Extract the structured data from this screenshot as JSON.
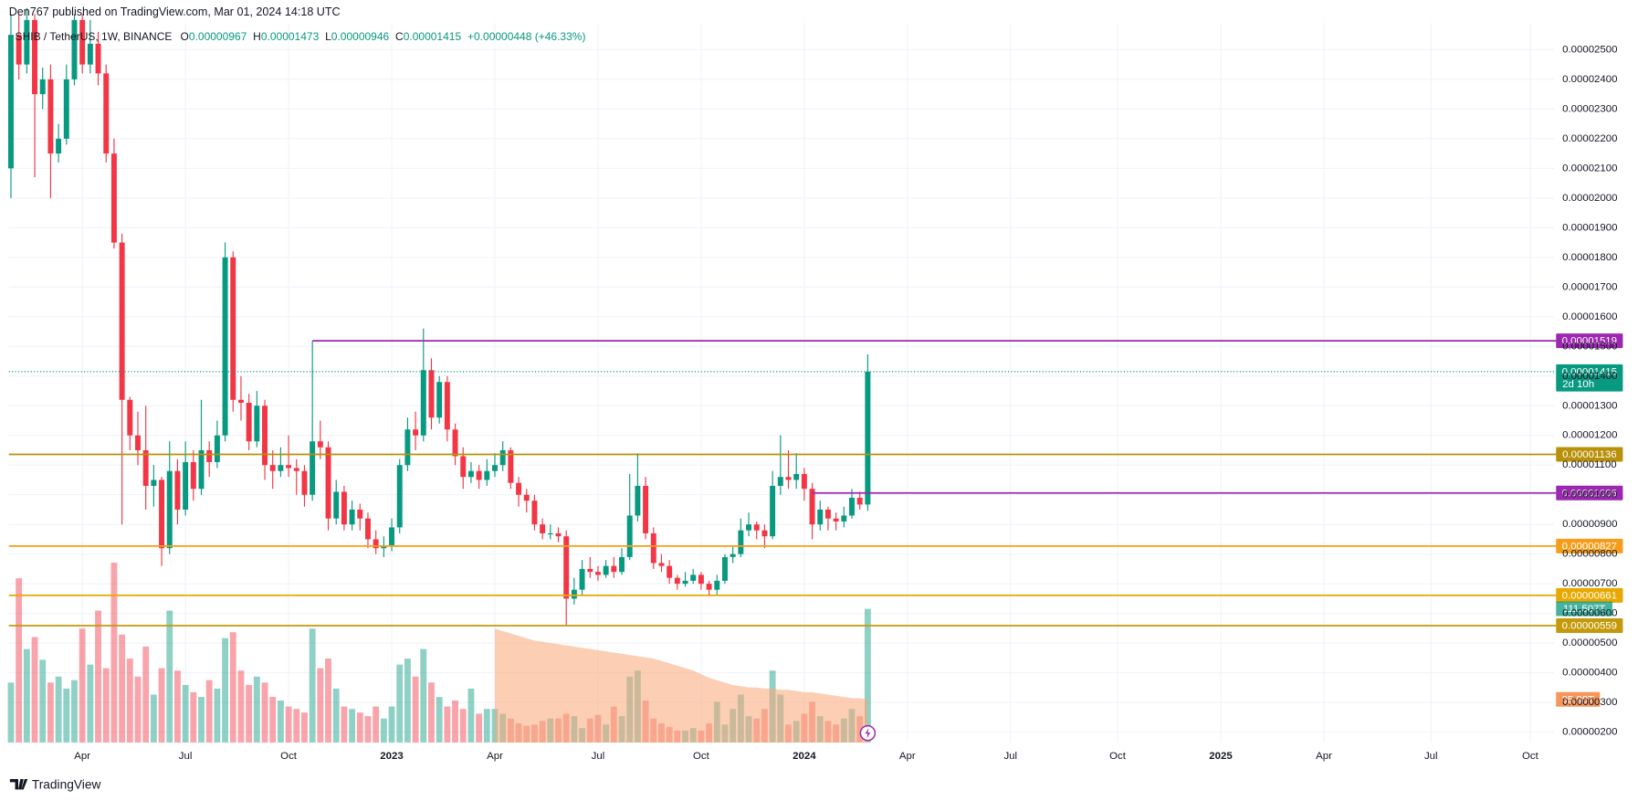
{
  "chart_data": {
    "type": "candlestick",
    "publisher": "Den767 published on TradingView.com, Mar 01, 2024 14:18 UTC",
    "symbol": "SHIB / TetherUS, 1W, BINANCE",
    "ohlc_letters": [
      "O",
      "H",
      "L",
      "C"
    ],
    "change": "+0.00000448 (+46.33%)",
    "brand": "TradingView",
    "up_color": "#089981",
    "down_color": "#f23645",
    "xlim": [
      -0.26,
      194.5
    ],
    "ylim": [
      1.65e-06,
      2.59e-05
    ],
    "volume_ylim": [
      0,
      600
    ],
    "grid": true,
    "xticks": [
      {
        "value": 9,
        "label": "Apr"
      },
      {
        "value": 22,
        "label": "Jul"
      },
      {
        "value": 35,
        "label": "Oct"
      },
      {
        "value": 48,
        "label": "2023"
      },
      {
        "value": 61,
        "label": "Apr"
      },
      {
        "value": 74,
        "label": "Jul"
      },
      {
        "value": 87,
        "label": "Oct"
      },
      {
        "value": 100,
        "label": "2024"
      },
      {
        "value": 113,
        "label": "Apr"
      },
      {
        "value": 126,
        "label": "Jul"
      },
      {
        "value": 139.5,
        "label": "Oct"
      },
      {
        "value": 152.5,
        "label": "2025"
      },
      {
        "value": 165.5,
        "label": "Apr"
      },
      {
        "value": 179,
        "label": "Jul"
      },
      {
        "value": 191.5,
        "label": "Oct"
      }
    ],
    "yticks": [
      {
        "value": 2e-06,
        "label": "0.00000200"
      },
      {
        "value": 3e-06,
        "label": "0.00000300"
      },
      {
        "value": 4e-06,
        "label": "0.00000400"
      },
      {
        "value": 5e-06,
        "label": "0.00000500"
      },
      {
        "value": 6e-06,
        "label": "0.00000600"
      },
      {
        "value": 7e-06,
        "label": "0.00000700"
      },
      {
        "value": 8e-06,
        "label": "0.00000800"
      },
      {
        "value": 9e-06,
        "label": "0.00000900"
      },
      {
        "value": 1e-05,
        "label": "0.00001000"
      },
      {
        "value": 1.1e-05,
        "label": "0.00001100"
      },
      {
        "value": 1.2e-05,
        "label": "0.00001200"
      },
      {
        "value": 1.3e-05,
        "label": "0.00001300"
      },
      {
        "value": 1.4e-05,
        "label": "0.00001400"
      },
      {
        "value": 1.5e-05,
        "label": "0.00001500"
      },
      {
        "value": 1.6e-05,
        "label": "0.00001600"
      },
      {
        "value": 1.7e-05,
        "label": "0.00001700"
      },
      {
        "value": 1.8e-05,
        "label": "0.00001800"
      },
      {
        "value": 1.9e-05,
        "label": "0.00001900"
      },
      {
        "value": 2e-05,
        "label": "0.00002000"
      },
      {
        "value": 2.1e-05,
        "label": "0.00002100"
      },
      {
        "value": 2.2e-05,
        "label": "0.00002200"
      },
      {
        "value": 2.3e-05,
        "label": "0.00002300"
      },
      {
        "value": 2.4e-05,
        "label": "0.00002400"
      },
      {
        "value": 2.5e-05,
        "label": "0.00002500"
      }
    ],
    "candles": [
      [
        2.1e-05,
        2.62e-05,
        2e-05,
        2.55e-05
      ],
      [
        2.55e-05,
        2.62e-05,
        2.4e-05,
        2.45e-05
      ],
      [
        2.45e-05,
        2.64e-05,
        2.42e-05,
        2.6e-05
      ],
      [
        2.6e-05,
        2.62e-05,
        2.07e-05,
        2.35e-05
      ],
      [
        2.35e-05,
        2.44e-05,
        2.3e-05,
        2.4e-05
      ],
      [
        2.4e-05,
        2.45e-05,
        2e-05,
        2.15e-05
      ],
      [
        2.15e-05,
        2.25e-05,
        2.12e-05,
        2.2e-05
      ],
      [
        2.2e-05,
        2.45e-05,
        2.18e-05,
        2.4e-05
      ],
      [
        2.4e-05,
        2.62e-05,
        2.38e-05,
        2.6e-05
      ],
      [
        2.6e-05,
        2.62e-05,
        2.42e-05,
        2.45e-05
      ],
      [
        2.45e-05,
        2.6e-05,
        2.42e-05,
        2.52e-05
      ],
      [
        2.52e-05,
        2.56e-05,
        2.38e-05,
        2.42e-05
      ],
      [
        2.42e-05,
        2.45e-05,
        2.12e-05,
        2.15e-05
      ],
      [
        2.15e-05,
        2.2e-05,
        1.83e-05,
        1.85e-05
      ],
      [
        1.85e-05,
        1.88e-05,
        9e-06,
        1.32e-05
      ],
      [
        1.32e-05,
        1.33e-05,
        1.15e-05,
        1.2e-05
      ],
      [
        1.2e-05,
        1.28e-05,
        1.1e-05,
        1.15e-05
      ],
      [
        1.15e-05,
        1.3e-05,
        9.5e-06,
        1.03e-05
      ],
      [
        1.03e-05,
        1.1e-05,
        9.6e-06,
        1.05e-05
      ],
      [
        1.05e-05,
        1.06e-05,
        7.6e-06,
        8.2e-06
      ],
      [
        8.2e-06,
        1.18e-05,
        8e-06,
        1.08e-05
      ],
      [
        1.08e-05,
        1.12e-05,
        9e-06,
        9.5e-06
      ],
      [
        9.5e-06,
        1.18e-05,
        9.3e-06,
        1.11e-05
      ],
      [
        1.11e-05,
        1.15e-05,
        9.8e-06,
        1.02e-05
      ],
      [
        1.02e-05,
        1.32e-05,
        1e-05,
        1.15e-05
      ],
      [
        1.15e-05,
        1.18e-05,
        1.06e-05,
        1.11e-05
      ],
      [
        1.11e-05,
        1.25e-05,
        1.09e-05,
        1.2e-05
      ],
      [
        1.2e-05,
        1.85e-05,
        1.18e-05,
        1.8e-05
      ],
      [
        1.8e-05,
        1.82e-05,
        1.28e-05,
        1.32e-05
      ],
      [
        1.32e-05,
        1.4e-05,
        1.25e-05,
        1.31e-05
      ],
      [
        1.31e-05,
        1.34e-05,
        1.15e-05,
        1.18e-05
      ],
      [
        1.18e-05,
        1.35e-05,
        1.16e-05,
        1.3e-05
      ],
      [
        1.3e-05,
        1.32e-05,
        1.05e-05,
        1.1e-05
      ],
      [
        1.1e-05,
        1.15e-05,
        1.02e-05,
        1.08e-05
      ],
      [
        1.08e-05,
        1.16e-05,
        1.06e-05,
        1.1e-05
      ],
      [
        1.1e-05,
        1.2e-05,
        1.06e-05,
        1.09e-05
      ],
      [
        1.09e-05,
        1.12e-05,
        1e-05,
        1.08e-05
      ],
      [
        1.08e-05,
        1.1e-05,
        9.6e-06,
        1e-05
      ],
      [
        1e-05,
        1.519e-05,
        9.8e-06,
        1.18e-05
      ],
      [
        1.18e-05,
        1.25e-05,
        1.12e-05,
        1.16e-05
      ],
      [
        1.16e-05,
        1.18e-05,
        8.8e-06,
        9.2e-06
      ],
      [
        9.2e-06,
        1.05e-05,
        9e-06,
        1.01e-05
      ],
      [
        1.01e-05,
        1.03e-05,
        8.8e-06,
        9e-06
      ],
      [
        9e-06,
        9.8e-06,
        8.8e-06,
        9.5e-06
      ],
      [
        9.5e-06,
        9.7e-06,
        8.8e-06,
        9.2e-06
      ],
      [
        9.2e-06,
        9.4e-06,
        8.2e-06,
        8.5e-06
      ],
      [
        8.5e-06,
        8.8e-06,
        8e-06,
        8.2e-06
      ],
      [
        8.2e-06,
        8.6e-06,
        7.9e-06,
        8.3e-06
      ],
      [
        8.3e-06,
        9.2e-06,
        8.1e-06,
        8.9e-06
      ],
      [
        8.9e-06,
        1.12e-05,
        8.7e-06,
        1.1e-05
      ],
      [
        1.1e-05,
        1.26e-05,
        1.08e-05,
        1.22e-05
      ],
      [
        1.22e-05,
        1.28e-05,
        1.15e-05,
        1.2e-05
      ],
      [
        1.2e-05,
        1.56e-05,
        1.18e-05,
        1.42e-05
      ],
      [
        1.42e-05,
        1.46e-05,
        1.22e-05,
        1.26e-05
      ],
      [
        1.26e-05,
        1.4e-05,
        1.24e-05,
        1.38e-05
      ],
      [
        1.38e-05,
        1.4e-05,
        1.18e-05,
        1.22e-05
      ],
      [
        1.22e-05,
        1.24e-05,
        1.1e-05,
        1.13e-05
      ],
      [
        1.13e-05,
        1.16e-05,
        1.02e-05,
        1.06e-05
      ],
      [
        1.06e-05,
        1.11e-05,
        1.04e-05,
        1.08e-05
      ],
      [
        1.08e-05,
        1.1e-05,
        1.02e-05,
        1.05e-05
      ],
      [
        1.05e-05,
        1.12e-05,
        1.03e-05,
        1.08e-05
      ],
      [
        1.08e-05,
        1.14e-05,
        1.06e-05,
        1.1e-05
      ],
      [
        1.1e-05,
        1.18e-05,
        1.08e-05,
        1.15e-05
      ],
      [
        1.15e-05,
        1.16e-05,
        1.02e-05,
        1.04e-05
      ],
      [
        1.04e-05,
        1.06e-05,
        9.6e-06,
        1e-05
      ],
      [
        1e-05,
        1.02e-05,
        9.4e-06,
        9.8e-06
      ],
      [
        9.8e-06,
        1e-05,
        8.8e-06,
        9e-06
      ],
      [
        9e-06,
        9.2e-06,
        8.5e-06,
        8.7e-06
      ],
      [
        8.7e-06,
        9e-06,
        8.5e-06,
        8.7e-06
      ],
      [
        8.7e-06,
        8.9e-06,
        8.4e-06,
        8.6e-06
      ],
      [
        8.6e-06,
        8.8e-06,
        5.6e-06,
        6.5e-06
      ],
      [
        6.5e-06,
        7.2e-06,
        6.3e-06,
        6.8e-06
      ],
      [
        6.8e-06,
        7.8e-06,
        6.6e-06,
        7.5e-06
      ],
      [
        7.5e-06,
        7.9e-06,
        7.2e-06,
        7.4e-06
      ],
      [
        7.4e-06,
        7.6e-06,
        7.1e-06,
        7.3e-06
      ],
      [
        7.3e-06,
        7.8e-06,
        7.2e-06,
        7.6e-06
      ],
      [
        7.6e-06,
        7.9e-06,
        7.2e-06,
        7.4e-06
      ],
      [
        7.4e-06,
        8.2e-06,
        7.3e-06,
        7.9e-06
      ],
      [
        7.9e-06,
        1.07e-05,
        7.8e-06,
        9.3e-06
      ],
      [
        9.3e-06,
        1.14e-05,
        9.1e-06,
        1.03e-05
      ],
      [
        1.03e-05,
        1.06e-05,
        8.5e-06,
        8.7e-06
      ],
      [
        8.7e-06,
        8.9e-06,
        7.5e-06,
        7.7e-06
      ],
      [
        7.7e-06,
        8e-06,
        7.4e-06,
        7.6e-06
      ],
      [
        7.6e-06,
        7.8e-06,
        7e-06,
        7.2e-06
      ],
      [
        7.2e-06,
        7.3e-06,
        6.8e-06,
        7e-06
      ],
      [
        7e-06,
        7.4e-06,
        6.9e-06,
        7.1e-06
      ],
      [
        7.1e-06,
        7.5e-06,
        7e-06,
        7.3e-06
      ],
      [
        7.3e-06,
        7.4e-06,
        6.8e-06,
        7e-06
      ],
      [
        7e-06,
        7.1e-06,
        6.6e-06,
        6.8e-06
      ],
      [
        6.8e-06,
        7.3e-06,
        6.6e-06,
        7.1e-06
      ],
      [
        7.1e-06,
        8e-06,
        7e-06,
        7.9e-06
      ],
      [
        7.9e-06,
        8.3e-06,
        7.7e-06,
        8e-06
      ],
      [
        8e-06,
        9.2e-06,
        7.9e-06,
        8.8e-06
      ],
      [
        8.8e-06,
        9.4e-06,
        8.6e-06,
        9e-06
      ],
      [
        9e-06,
        9.1e-06,
        8.5e-06,
        8.8e-06
      ],
      [
        8.8e-06,
        9e-06,
        8.2e-06,
        8.6e-06
      ],
      [
        8.6e-06,
        1.08e-05,
        8.5e-06,
        1.03e-05
      ],
      [
        1.03e-05,
        1.2e-05,
        1e-05,
        1.06e-05
      ],
      [
        1.06e-05,
        1.15e-05,
        1.02e-05,
        1.05e-05
      ],
      [
        1.05e-05,
        1.14e-05,
        1.02e-05,
        1.07e-05
      ],
      [
        1.07e-05,
        1.09e-05,
        9.8e-06,
        1.02e-05
      ],
      [
        1.02e-05,
        1.04e-05,
        8.5e-06,
        9e-06
      ],
      [
        9e-06,
        9.8e-06,
        8.8e-06,
        9.5e-06
      ],
      [
        9.5e-06,
        9.6e-06,
        8.8e-06,
        9.2e-06
      ],
      [
        9.2e-06,
        9.4e-06,
        8.8e-06,
        9.1e-06
      ],
      [
        9.1e-06,
        9.6e-06,
        8.9e-06,
        9.3e-06
      ],
      [
        9.3e-06,
        1.02e-05,
        9.2e-06,
        9.9e-06
      ],
      [
        9.9e-06,
        1.01e-05,
        9.5e-06,
        9.67e-06
      ],
      [
        9.67e-06,
        1.473e-05,
        9.46e-06,
        1.415e-05
      ]
    ],
    "volume": [
      50,
      137,
      78,
      88,
      69,
      50,
      55,
      45,
      52,
      95,
      65,
      110,
      62,
      150,
      90,
      70,
      55,
      80,
      40,
      62,
      110,
      60,
      48,
      42,
      38,
      52,
      45,
      87,
      92,
      60,
      48,
      55,
      50,
      38,
      35,
      30,
      28,
      25,
      95,
      62,
      70,
      45,
      30,
      28,
      25,
      22,
      30,
      20,
      30,
      65,
      70,
      55,
      78,
      50,
      38,
      30,
      35,
      28,
      45,
      24,
      28,
      28,
      24,
      20,
      16,
      14,
      15,
      18,
      20,
      20,
      24,
      22,
      12,
      20,
      23,
      15,
      30,
      22,
      55,
      60,
      35,
      20,
      16,
      13,
      10,
      10,
      12,
      10,
      16,
      34,
      15,
      28,
      40,
      22,
      20,
      28,
      60,
      40,
      15,
      18,
      24,
      34,
      22,
      18,
      15,
      20,
      28,
      22,
      111.507
    ],
    "volume_label": "111.507T",
    "volume_ma": [
      null,
      null,
      null,
      null,
      null,
      null,
      null,
      null,
      null,
      null,
      null,
      null,
      null,
      null,
      null,
      null,
      null,
      null,
      null,
      null,
      null,
      null,
      null,
      null,
      null,
      null,
      null,
      null,
      null,
      null,
      null,
      null,
      null,
      null,
      null,
      null,
      null,
      null,
      null,
      null,
      null,
      null,
      null,
      null,
      null,
      null,
      null,
      null,
      null,
      null,
      null,
      null,
      null,
      null,
      null,
      null,
      null,
      null,
      null,
      null,
      null,
      95,
      93,
      91,
      89,
      87,
      85,
      84,
      83,
      82,
      81,
      80,
      79,
      78,
      77,
      76,
      75,
      74,
      73,
      72,
      71,
      70,
      68,
      66,
      64,
      62,
      60,
      57,
      54,
      52,
      50,
      48,
      47,
      46,
      46,
      45,
      45,
      44,
      44,
      43,
      42,
      42,
      41,
      40,
      39,
      38,
      37,
      37,
      35.98
    ],
    "volume_ma_label": "35.98T",
    "volume_ma_color": "#f9a779",
    "last_price": {
      "value": 1.415e-05,
      "countdown": "2d 10h",
      "color": "#089981"
    },
    "levels": [
      {
        "value": 1.519e-05,
        "color": "#9c27b0",
        "from": 38
      },
      {
        "value": 1.136e-05,
        "color": "#b8900a",
        "from": null
      },
      {
        "value": 1.006e-05,
        "color": "#9c27b0",
        "from": 101
      },
      {
        "value": 8.27e-06,
        "color": "#f59d1a",
        "from": null
      },
      {
        "value": 6.61e-06,
        "color": "#e9a800",
        "from": null
      },
      {
        "value": 5.59e-06,
        "color": "#c49a0a",
        "from": null
      }
    ]
  }
}
